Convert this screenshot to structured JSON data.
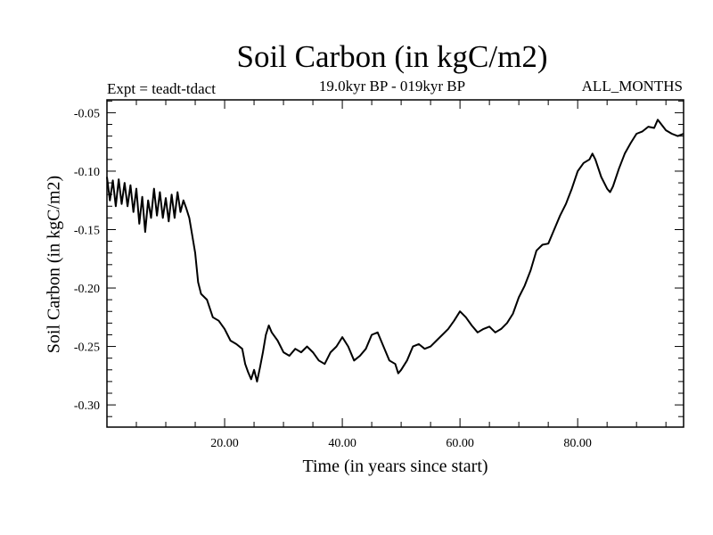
{
  "chart_data": {
    "type": "line",
    "title": "Soil Carbon (in kgC/m2)",
    "subtitle": "19.0kyr BP - 019kyr BP",
    "annotation_left": "Expt = teadt-tdact",
    "annotation_right": "ALL_MONTHS",
    "xlabel": "Time (in years since start)",
    "ylabel": "Soil Carbon (in kgC/m2)",
    "xlim": [
      0,
      98
    ],
    "ylim": [
      -0.319,
      -0.039
    ],
    "xticks": [
      20,
      40,
      60,
      80
    ],
    "xtick_labels": [
      "20.00",
      "40.00",
      "60.00",
      "80.00"
    ],
    "yticks": [
      -0.05,
      -0.1,
      -0.15,
      -0.2,
      -0.25,
      -0.3
    ],
    "ytick_labels": [
      "-0.05",
      "-0.10",
      "-0.15",
      "-0.20",
      "-0.25",
      "-0.30"
    ],
    "grid": false,
    "line_color": "#000000",
    "series": [
      {
        "name": "Soil Carbon",
        "x": [
          0,
          0.5,
          1,
          1.5,
          2,
          2.5,
          3,
          3.5,
          4,
          4.5,
          5,
          5.5,
          6,
          6.5,
          7,
          7.5,
          8,
          8.5,
          9,
          9.5,
          10,
          10.5,
          11,
          11.5,
          12,
          12.5,
          13,
          13.5,
          14,
          14.5,
          15,
          15.5,
          16,
          17,
          18,
          19,
          20,
          21,
          22,
          23,
          23.5,
          24,
          24.5,
          25,
          25.5,
          26,
          26.5,
          27,
          27.5,
          28,
          29,
          30,
          31,
          32,
          33,
          34,
          35,
          36,
          37,
          38,
          39,
          40,
          41,
          42,
          43,
          44,
          45,
          46,
          47,
          48,
          49,
          49.5,
          50,
          51,
          52,
          53,
          54,
          55,
          56,
          57,
          58,
          59,
          60,
          61,
          62,
          63,
          64,
          65,
          66,
          67,
          68,
          69,
          70,
          71,
          72,
          73,
          74,
          75,
          76,
          77,
          78,
          79,
          80,
          81,
          82,
          82.5,
          83,
          84,
          85,
          85.5,
          86,
          87,
          88,
          89,
          90,
          91,
          92,
          93,
          93.6,
          95,
          96,
          97,
          98
        ],
        "y": [
          -0.105,
          -0.125,
          -0.108,
          -0.13,
          -0.107,
          -0.128,
          -0.11,
          -0.13,
          -0.112,
          -0.135,
          -0.115,
          -0.145,
          -0.122,
          -0.152,
          -0.125,
          -0.14,
          -0.115,
          -0.138,
          -0.118,
          -0.14,
          -0.123,
          -0.143,
          -0.12,
          -0.14,
          -0.118,
          -0.135,
          -0.125,
          -0.132,
          -0.14,
          -0.155,
          -0.17,
          -0.195,
          -0.205,
          -0.21,
          -0.225,
          -0.228,
          -0.235,
          -0.245,
          -0.248,
          -0.252,
          -0.265,
          -0.272,
          -0.278,
          -0.27,
          -0.28,
          -0.268,
          -0.255,
          -0.24,
          -0.232,
          -0.238,
          -0.245,
          -0.255,
          -0.258,
          -0.252,
          -0.255,
          -0.25,
          -0.255,
          -0.262,
          -0.265,
          -0.255,
          -0.25,
          -0.242,
          -0.25,
          -0.262,
          -0.258,
          -0.252,
          -0.24,
          -0.238,
          -0.25,
          -0.262,
          -0.265,
          -0.273,
          -0.27,
          -0.262,
          -0.25,
          -0.248,
          -0.252,
          -0.25,
          -0.245,
          -0.24,
          -0.235,
          -0.228,
          -0.22,
          -0.225,
          -0.232,
          -0.238,
          -0.235,
          -0.233,
          -0.238,
          -0.235,
          -0.23,
          -0.222,
          -0.208,
          -0.198,
          -0.185,
          -0.168,
          -0.163,
          -0.162,
          -0.15,
          -0.138,
          -0.128,
          -0.115,
          -0.1,
          -0.093,
          -0.09,
          -0.085,
          -0.09,
          -0.105,
          -0.115,
          -0.118,
          -0.113,
          -0.098,
          -0.085,
          -0.076,
          -0.068,
          -0.066,
          -0.062,
          -0.063,
          -0.056,
          -0.065,
          -0.068,
          -0.07,
          -0.068
        ]
      }
    ]
  }
}
